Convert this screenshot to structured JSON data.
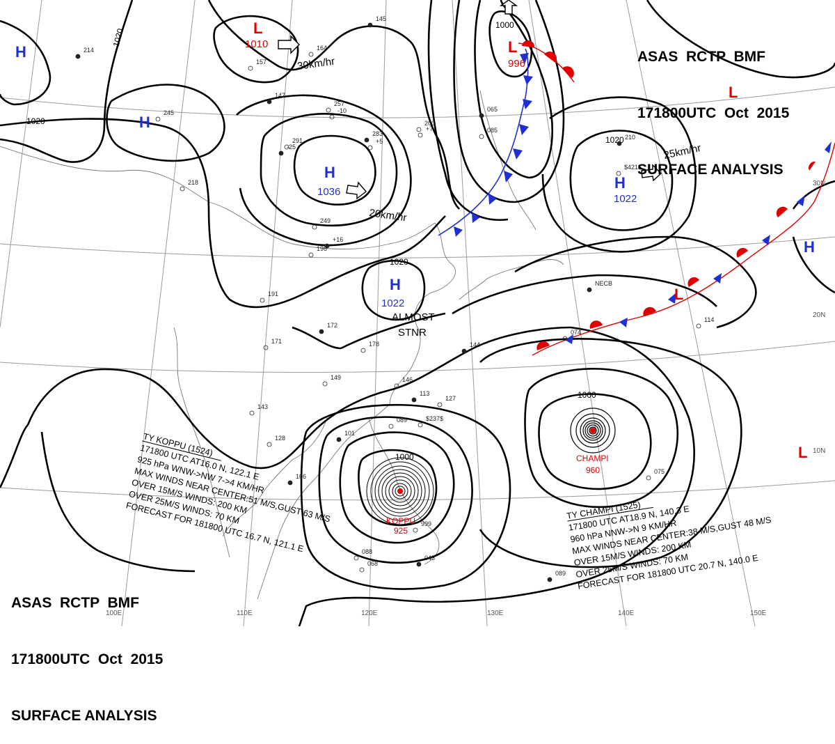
{
  "header": {
    "agency_line": "ASAS  RCTP  BMF",
    "time_line": "171800UTC  Oct  2015",
    "title_line": "SURFACE ANALYSIS"
  },
  "colors": {
    "high": "#1f2fd0",
    "low": "#e00000",
    "cold_front": "#1f2fd0",
    "warm_front": "#e00000",
    "isobar": "#000000",
    "graticule": "#9a9a9a"
  },
  "pressure_centers": [
    {
      "type": "L",
      "value": "1010"
    },
    {
      "type": "H",
      "value": ""
    },
    {
      "type": "H",
      "value": ""
    },
    {
      "type": "H",
      "value": "1036"
    },
    {
      "type": "L",
      "value": "996"
    },
    {
      "type": "L",
      "value": ""
    },
    {
      "type": "H",
      "value": "1022"
    },
    {
      "type": "H",
      "value": "1022"
    },
    {
      "type": "H",
      "value": ""
    },
    {
      "type": "L",
      "value": ""
    },
    {
      "type": "L",
      "value": ""
    }
  ],
  "isobar_labels": [
    "1020",
    "1020",
    "1000",
    "1020",
    "1020",
    "1000",
    "1000"
  ],
  "motion_labels": [
    "30km/hr",
    "20km/hr",
    "25km/hr"
  ],
  "stationary_note": [
    "ALMOST",
    "STNR"
  ],
  "latitude_labels": [
    "30N",
    "20N",
    "10N"
  ],
  "longitude_labels": [
    "100E",
    "110E",
    "120E",
    "130E",
    "140E",
    "150E"
  ],
  "typhoons": [
    {
      "name": "KOPPU",
      "pressure": "925",
      "bulletin": [
        "TY  KOPPU  (1524)",
        "171800 UTC  AT16.0 N, 122.1 E",
        "925 hPa  WNW->NW  7->4 KM/HR",
        "MAX WINDS NEAR CENTER:51 M/S,GUST 63 M/S",
        "OVER 15M/S WINDS: 200 KM",
        "OVER 25M/S WINDS: 70 KM",
        "FORECAST FOR 181800 UTC 16.7 N, 121.1 E"
      ]
    },
    {
      "name": "CHAMPI",
      "pressure": "960",
      "bulletin": [
        "TY  CHAMPI  (1525)",
        "171800 UTC  AT18.9 N, 140.3 E",
        "960 hPa  NNW->N  9 KM/HR",
        "MAX WINDS NEAR CENTER:38 M/S,GUST 48 M/S",
        "OVER 15M/S WINDS: 200 KM",
        "OVER 25M/S WINDS: 70 KM",
        "FORECAST FOR 181800 UTC 20.7 N, 140.0 E"
      ]
    }
  ],
  "station_plots": [
    "145",
    "164",
    "157",
    "147",
    "257",
    "-10",
    "283",
    "+5",
    "291",
    "-25",
    "200",
    "+7",
    "065",
    "085",
    "245",
    "214",
    "218",
    "249",
    "+16",
    "198",
    "191",
    "172",
    "171",
    "178",
    "144",
    "149",
    "146",
    "113",
    "127",
    "089",
    "101",
    "128",
    "143",
    "106",
    "088",
    "068",
    "045",
    "999",
    "075",
    "089",
    "074",
    "114",
    "NECB",
    "$237$",
    "$421$",
    "210"
  ]
}
